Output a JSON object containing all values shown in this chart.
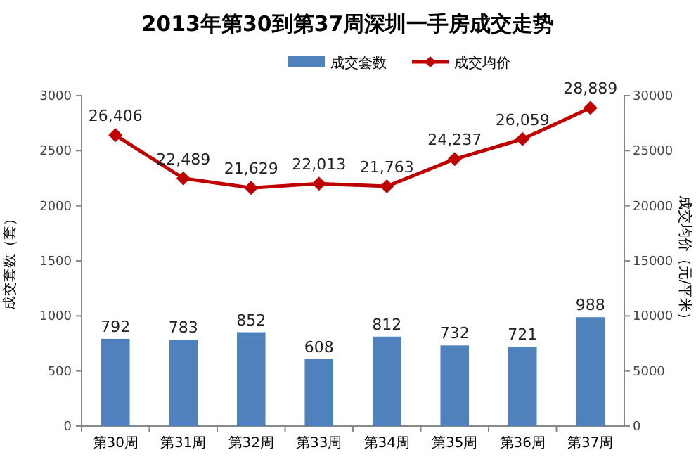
{
  "chart_data": {
    "type": "bar",
    "title": "2013年第30到第37周深圳一手房成交走势",
    "categories": [
      "第30周",
      "第31周",
      "第32周",
      "第33周",
      "第34周",
      "第35周",
      "第36周",
      "第37周"
    ],
    "series": [
      {
        "name": "成交套数",
        "color": "#4f81bd",
        "values": [
          792,
          783,
          852,
          608,
          812,
          732,
          721,
          988
        ]
      },
      {
        "name": "成交均价",
        "type": "line",
        "axis": "y2",
        "color": "#c00000",
        "marker": "diamond",
        "values": [
          26406,
          22489,
          21629,
          22013,
          21763,
          24237,
          26059,
          28889
        ],
        "value_labels": [
          "26,406",
          "22,489",
          "21,629",
          "22,013",
          "21,763",
          "24,237",
          "26,059",
          "28,889"
        ]
      }
    ],
    "ylabel": "成交套数（套）",
    "y2label": "成交均价（元/平米）",
    "ylim": [
      0,
      3000
    ],
    "yticks": [
      0,
      500,
      1000,
      1500,
      2000,
      2500,
      3000
    ],
    "y2lim": [
      0,
      30000
    ],
    "y2ticks": [
      0,
      5000,
      10000,
      15000,
      20000,
      25000,
      30000
    ],
    "data_labels": true,
    "legend": "top",
    "grid": false
  }
}
